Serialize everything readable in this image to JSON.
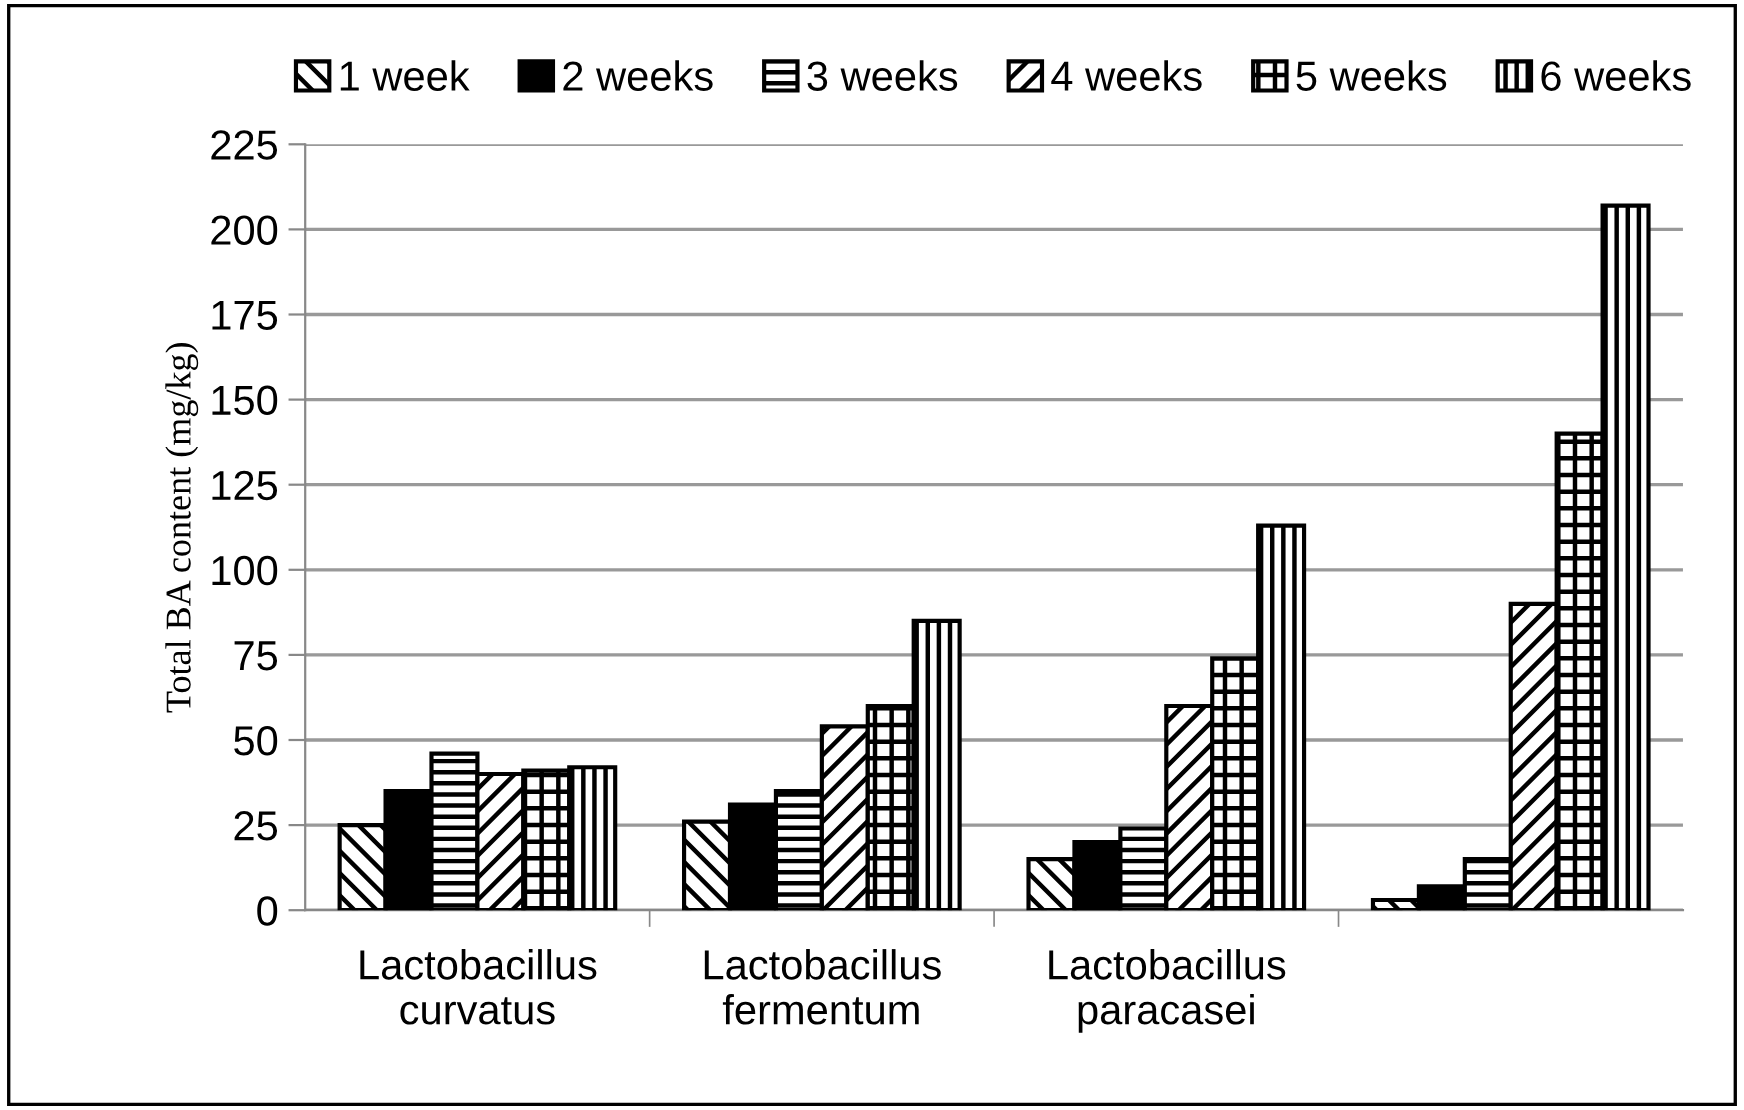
{
  "chart_data": {
    "type": "bar",
    "ylabel": "Total BA content (mg/kg)",
    "categories": [
      "Lactobacillus\ncurvatus",
      "Lactobacillus\nfermentum",
      "Lactobacillus\nparacasei",
      null
    ],
    "series": [
      {
        "name": "1 week",
        "color": "#000000",
        "values": [
          25,
          26,
          15,
          3
        ]
      },
      {
        "name": "2 weeks",
        "color": "#000000",
        "values": [
          35,
          31,
          20,
          7
        ]
      },
      {
        "name": "3 weeks",
        "color": "#000000",
        "values": [
          46,
          35,
          24,
          15
        ]
      },
      {
        "name": "4 weeks",
        "color": "#000000",
        "values": [
          40,
          54,
          60,
          90
        ]
      },
      {
        "name": "5 weeks",
        "color": "#000000",
        "values": [
          41,
          60,
          74,
          140
        ]
      },
      {
        "name": "6 weeks",
        "color": "#000000",
        "values": [
          42,
          85,
          113,
          207
        ]
      }
    ],
    "ylim": [
      0,
      225
    ],
    "yticks": [
      0,
      25,
      50,
      75,
      100,
      125,
      150,
      175,
      200,
      225
    ],
    "grid": "y",
    "legend": "top"
  }
}
